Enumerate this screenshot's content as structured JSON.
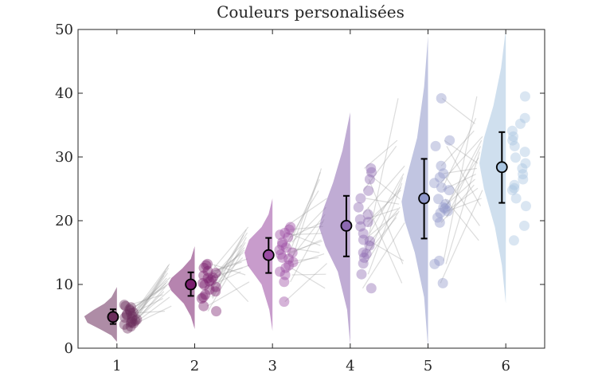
{
  "chart_data": {
    "type": "raincloud",
    "title": "Couleurs personalisées",
    "xlabel": "",
    "ylabel": "",
    "ylim": [
      0,
      50
    ],
    "xlim": [
      0.5,
      6.5
    ],
    "x_ticks": [
      "1",
      "2",
      "3",
      "4",
      "5",
      "6"
    ],
    "y_ticks": [
      "0",
      "10",
      "20",
      "30",
      "40",
      "50"
    ],
    "grid": false,
    "box": true,
    "groups": [
      {
        "x": 1,
        "color": "#6b2d5c",
        "mean": 4.9,
        "err": [
          3.8,
          6.1
        ],
        "violin": [
          [
            1.0,
            0.0
          ],
          [
            2.0,
            0.07
          ],
          [
            3.0,
            0.22
          ],
          [
            4.0,
            0.38
          ],
          [
            5.0,
            0.42
          ],
          [
            6.0,
            0.3
          ],
          [
            7.0,
            0.16
          ],
          [
            8.0,
            0.07
          ],
          [
            9.6,
            0.0
          ]
        ],
        "points": [
          3.4,
          4.1,
          4.8,
          5.3,
          5.9,
          6.4,
          3.7,
          4.5,
          5.0,
          6.1,
          3.1,
          4.3,
          5.6,
          6.8,
          4.0,
          5.2,
          3.9,
          6.6,
          4.6,
          5.5
        ]
      },
      {
        "x": 2,
        "color": "#7a1f6e",
        "mean": 10.0,
        "err": [
          8.2,
          11.9
        ],
        "violin": [
          [
            3.0,
            0.0
          ],
          [
            5.0,
            0.05
          ],
          [
            7.0,
            0.14
          ],
          [
            9.0,
            0.3
          ],
          [
            10.0,
            0.34
          ],
          [
            11.0,
            0.3
          ],
          [
            12.5,
            0.16
          ],
          [
            14.0,
            0.05
          ],
          [
            16.0,
            0.0
          ]
        ],
        "points": [
          6.6,
          7.8,
          8.9,
          9.6,
          10.2,
          11.0,
          11.8,
          12.6,
          13.2,
          9.2,
          10.7,
          8.4,
          11.4,
          5.8,
          12.1,
          9.9,
          10.5,
          13.0,
          8.0,
          11.1
        ]
      },
      {
        "x": 3,
        "color": "#9a4aa3",
        "mean": 14.6,
        "err": [
          11.8,
          17.3
        ],
        "violin": [
          [
            2.7,
            0.0
          ],
          [
            6.0,
            0.04
          ],
          [
            10.0,
            0.14
          ],
          [
            13.0,
            0.32
          ],
          [
            15.0,
            0.36
          ],
          [
            17.0,
            0.3
          ],
          [
            19.0,
            0.14
          ],
          [
            21.0,
            0.05
          ],
          [
            23.5,
            0.0
          ]
        ],
        "points": [
          7.3,
          10.4,
          12.0,
          13.5,
          14.2,
          15.0,
          15.8,
          16.6,
          17.4,
          18.1,
          19.0,
          13.0,
          14.7,
          16.2,
          12.6,
          17.8,
          15.4,
          11.5,
          18.6,
          14.0
        ]
      },
      {
        "x": 4,
        "color": "#8c68b0",
        "mean": 19.2,
        "err": [
          14.4,
          23.9
        ],
        "violin": [
          [
            0.5,
            0.0
          ],
          [
            6.0,
            0.04
          ],
          [
            12.0,
            0.16
          ],
          [
            16.0,
            0.32
          ],
          [
            19.0,
            0.4
          ],
          [
            22.0,
            0.34
          ],
          [
            26.0,
            0.22
          ],
          [
            31.0,
            0.1
          ],
          [
            37.0,
            0.0
          ]
        ],
        "points": [
          9.4,
          11.6,
          13.3,
          14.2,
          15.0,
          16.1,
          17.0,
          18.0,
          19.1,
          20.2,
          21.0,
          22.1,
          23.5,
          24.7,
          26.5,
          27.6,
          28.2,
          16.8,
          19.8,
          14.8
        ]
      },
      {
        "x": 5,
        "color": "#8e96c8",
        "mean": 23.5,
        "err": [
          17.2,
          29.7
        ],
        "violin": [
          [
            0.0,
            0.0
          ],
          [
            8.0,
            0.05
          ],
          [
            15.0,
            0.17
          ],
          [
            20.0,
            0.3
          ],
          [
            23.0,
            0.34
          ],
          [
            27.0,
            0.27
          ],
          [
            33.0,
            0.14
          ],
          [
            41.0,
            0.05
          ],
          [
            49.0,
            0.0
          ]
        ],
        "points": [
          10.2,
          13.2,
          13.7,
          19.7,
          20.5,
          21.2,
          21.9,
          22.6,
          23.4,
          24.8,
          25.9,
          26.8,
          27.4,
          28.6,
          31.7,
          32.6,
          39.2,
          21.5,
          22.1,
          25.2
        ]
      },
      {
        "x": 6,
        "color": "#a8c4e0",
        "mean": 28.4,
        "err": [
          22.8,
          33.9
        ],
        "violin": [
          [
            7.0,
            0.0
          ],
          [
            13.0,
            0.05
          ],
          [
            19.0,
            0.14
          ],
          [
            25.0,
            0.28
          ],
          [
            29.0,
            0.34
          ],
          [
            33.0,
            0.28
          ],
          [
            38.0,
            0.16
          ],
          [
            44.0,
            0.06
          ],
          [
            50.0,
            0.0
          ]
        ],
        "points": [
          16.9,
          19.2,
          22.3,
          23.5,
          24.8,
          25.6,
          26.5,
          27.3,
          28.2,
          29.0,
          29.9,
          30.8,
          31.7,
          32.6,
          33.2,
          34.1,
          35.2,
          36.1,
          39.5,
          25.1
        ]
      }
    ]
  }
}
